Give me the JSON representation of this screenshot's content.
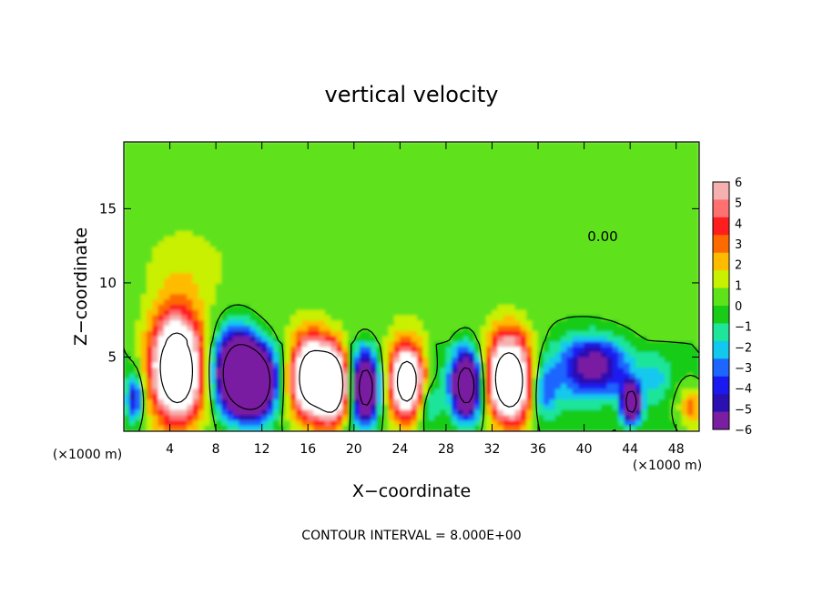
{
  "chart_data": {
    "type": "heatmap",
    "title": "vertical velocity",
    "xlabel": "X−coordinate",
    "ylabel": "Z−coordinate",
    "x_unit_left": "(×1000 m)",
    "x_unit_right": "(×1000 m)",
    "footer": "CONTOUR INTERVAL = 8.000E+00",
    "contour_label": "0.00",
    "xlim": [
      0,
      50
    ],
    "ylim": [
      0,
      19.5
    ],
    "x_ticks": [
      "4",
      "8",
      "12",
      "16",
      "20",
      "24",
      "28",
      "32",
      "36",
      "40",
      "44",
      "48"
    ],
    "y_ticks": [
      "5",
      "10",
      "15"
    ],
    "colorbar": {
      "labels": [
        "6",
        "5",
        "4",
        "3",
        "2",
        "1",
        "0",
        "−1",
        "−2",
        "−3",
        "−4",
        "−5",
        "−6"
      ],
      "range": [
        -6,
        6
      ],
      "colors": [
        "#7a1fa2",
        "#2a10b0",
        "#1a1af0",
        "#1d66ff",
        "#12c8ee",
        "#1fe59a",
        "#18cc18",
        "#5ee21a",
        "#c8f000",
        "#ffbb00",
        "#ff6a00",
        "#ff1e1e",
        "#ff7070",
        "#f5b0b0"
      ]
    },
    "features": [
      {
        "x": 0.9,
        "z": 2.2,
        "w": 0.7,
        "h": 1.6,
        "value": -5
      },
      {
        "x": 4.6,
        "z": 4.2,
        "w": 2.2,
        "h": 3.6,
        "value": 12
      },
      {
        "x": 9.8,
        "z": 4.0,
        "w": 1.8,
        "h": 2.6,
        "value": -12
      },
      {
        "x": 11.6,
        "z": 3.3,
        "w": 1.6,
        "h": 2.1,
        "value": -12
      },
      {
        "x": 16.3,
        "z": 3.6,
        "w": 1.7,
        "h": 2.6,
        "value": 12
      },
      {
        "x": 18.2,
        "z": 3.1,
        "w": 1.2,
        "h": 2.3,
        "value": 12
      },
      {
        "x": 21.0,
        "z": 2.9,
        "w": 1.1,
        "h": 2.2,
        "value": -11
      },
      {
        "x": 24.6,
        "z": 3.3,
        "w": 1.5,
        "h": 2.4,
        "value": 11
      },
      {
        "x": 29.8,
        "z": 3.1,
        "w": 1.3,
        "h": 2.2,
        "value": -11
      },
      {
        "x": 33.5,
        "z": 3.5,
        "w": 1.9,
        "h": 2.9,
        "value": 12
      },
      {
        "x": 40.7,
        "z": 4.3,
        "w": 3.2,
        "h": 2.1,
        "value": -6
      },
      {
        "x": 44.1,
        "z": 1.9,
        "w": 0.8,
        "h": 1.3,
        "value": -10
      },
      {
        "x": 49.3,
        "z": 1.6,
        "w": 0.9,
        "h": 1.3,
        "value": 3
      },
      {
        "x": 26.5,
        "z": 2.0,
        "w": 1.0,
        "h": 1.5,
        "value": -3
      },
      {
        "x": 36.5,
        "z": 2.5,
        "w": 1.1,
        "h": 2.0,
        "value": -3
      },
      {
        "x": 46.3,
        "z": 3.5,
        "w": 1.4,
        "h": 1.6,
        "value": -2
      },
      {
        "x": 5.0,
        "z": 11.0,
        "w": 3.5,
        "h": 3.0,
        "value": 1.2
      },
      {
        "x": 22.0,
        "z": 11.0,
        "w": 3.5,
        "h": 4.0,
        "value": 0.5
      }
    ]
  }
}
